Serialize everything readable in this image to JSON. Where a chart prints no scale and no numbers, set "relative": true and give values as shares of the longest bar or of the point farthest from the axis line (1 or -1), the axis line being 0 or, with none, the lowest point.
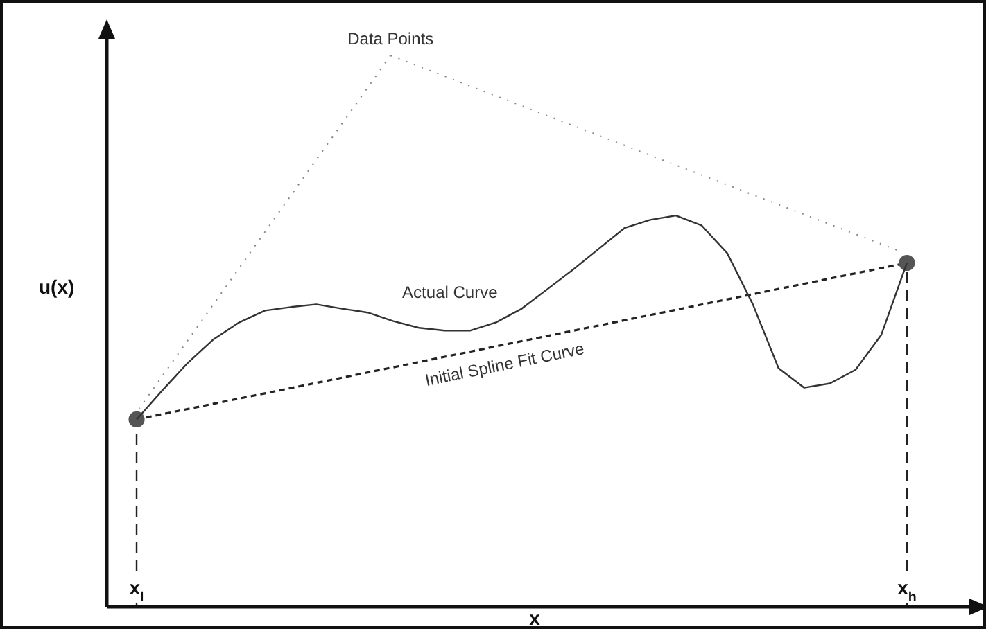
{
  "chart_data": {
    "type": "line",
    "relative": true,
    "xlabel": "x",
    "ylabel": "u(x)",
    "categories": [
      null,
      "x$_{l}$",
      null,
      null,
      null,
      null,
      null,
      null,
      null,
      null,
      null,
      null,
      null,
      null,
      null,
      null,
      null,
      null,
      null,
      null,
      null,
      null,
      null,
      null,
      null,
      null,
      null,
      null,
      null,
      null,
      null,
      "x$_{h}$",
      null,
      null
    ],
    "ref_lines": [
      {
        "axis": "x",
        "value": "x$_{l}$",
        "color": "#222222",
        "line_style": "dashed"
      },
      {
        "axis": "x",
        "value": "x$_{h}$",
        "color": "#222222",
        "line_style": "dashed"
      }
    ],
    "annotations": [
      "Data Points"
    ],
    "grid": false,
    "legend": false,
    "series": [
      {
        "name": "Actual Curve",
        "color": "#333333",
        "line_style": "solid",
        "marker": "none",
        "values": [
          null,
          0.479,
          0.553,
          0.624,
          0.684,
          0.727,
          0.757,
          0.766,
          0.773,
          0.762,
          0.752,
          0.73,
          0.713,
          0.706,
          0.706,
          0.727,
          0.762,
          0.812,
          0.862,
          0.915,
          0.968,
          0.989,
          1.0,
          0.975,
          0.904,
          0.773,
          0.61,
          0.56,
          0.571,
          0.606,
          0.695,
          0.879,
          null,
          null
        ]
      },
      {
        "name": "Initial Spline Fit Curve",
        "color": "#222222",
        "line_style": "dashed",
        "marker": "circle",
        "values": [
          null,
          0.479,
          null,
          null,
          null,
          null,
          null,
          null,
          null,
          null,
          null,
          null,
          null,
          null,
          null,
          null,
          null,
          null,
          null,
          null,
          null,
          null,
          null,
          null,
          null,
          null,
          null,
          null,
          null,
          null,
          null,
          0.879,
          null,
          null
        ]
      }
    ]
  }
}
